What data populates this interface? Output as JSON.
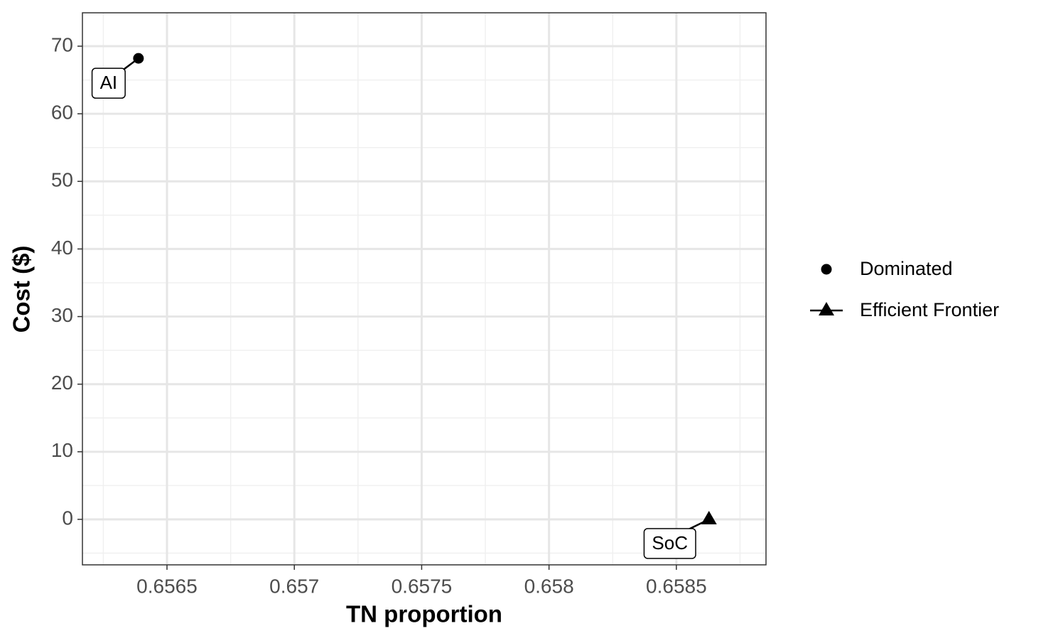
{
  "chart_data": {
    "type": "scatter",
    "x_label": "TN proportion",
    "y_label": "Cost ($)",
    "xlim": [
      0.656168,
      0.658852
    ],
    "xticks": [
      0.6565,
      0.657,
      0.6575,
      0.658,
      0.6585
    ],
    "ylim": [
      -6.73,
      74.94
    ],
    "yticks": [
      0,
      10,
      20,
      30,
      40,
      50,
      60,
      70
    ],
    "grid": true,
    "legend": "right",
    "series": [
      {
        "name": "Dominated",
        "shape": "circle",
        "color": "#000000",
        "x": [
          0.656388
        ],
        "values": [
          68.2
        ],
        "labels": [
          "AI"
        ]
      },
      {
        "name": "Efficient Frontier",
        "shape": "triangle",
        "color": "#000000",
        "x": [
          0.658628
        ],
        "values": [
          0
        ],
        "labels": [
          "SoC"
        ]
      }
    ]
  }
}
